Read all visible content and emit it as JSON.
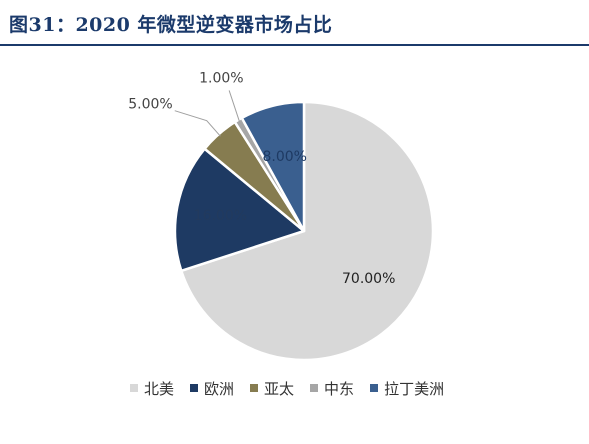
{
  "header": {
    "title": "图31：2020 年微型逆变器市场占比"
  },
  "chart_data": {
    "type": "pie",
    "title": "",
    "slices": [
      {
        "label": "北美",
        "value": 70,
        "display": "70.00%",
        "color": "#d8d8d8"
      },
      {
        "label": "欧洲",
        "value": 16,
        "display": "16.00%",
        "color": "#1e3a63"
      },
      {
        "label": "亚太",
        "value": 5,
        "display": "5.00%",
        "color": "#867c50"
      },
      {
        "label": "中东",
        "value": 1,
        "display": "1.00%",
        "color": "#a6a6a6"
      },
      {
        "label": "拉丁美洲",
        "value": 8,
        "display": "8.00%",
        "color": "#3a5f8f"
      }
    ],
    "legend_position": "bottom"
  }
}
